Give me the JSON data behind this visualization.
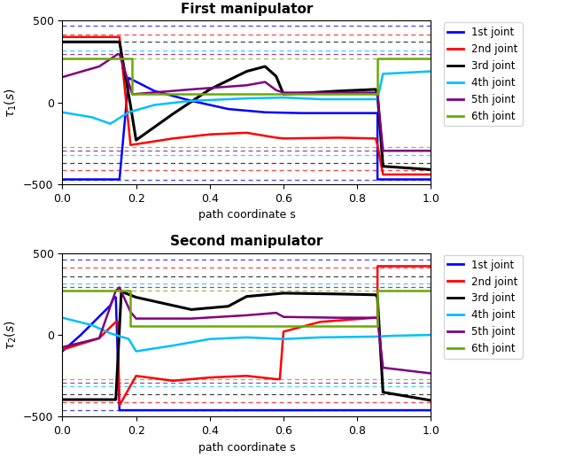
{
  "title1": "First manipulator",
  "title2": "Second manipulator",
  "xlabel": "path coordinate s",
  "ylabel1": "$\\tau_1(s)$",
  "ylabel2": "$\\tau_2(s)$",
  "ylim": [
    -500,
    500
  ],
  "xlim": [
    0,
    1
  ],
  "colors": [
    "#0000ff",
    "#ff0000",
    "#000000",
    "#00bfff",
    "#800080",
    "#6aaa00"
  ],
  "legend_labels": [
    "1st joint",
    "2nd joint",
    "3rd joint",
    "4th joint",
    "5th joint",
    "6th joint"
  ],
  "lw_main": 1.8,
  "lw_limit": 0.9,
  "joint_limits_upper1": [
    470,
    415,
    370,
    320,
    295,
    270
  ],
  "joint_limits_lower1": [
    -470,
    -415,
    -370,
    -320,
    -295,
    -270
  ],
  "joint_limits_upper2": [
    460,
    410,
    360,
    315,
    290,
    270
  ],
  "joint_limits_lower2": [
    -460,
    -410,
    -360,
    -315,
    -290,
    -270
  ]
}
